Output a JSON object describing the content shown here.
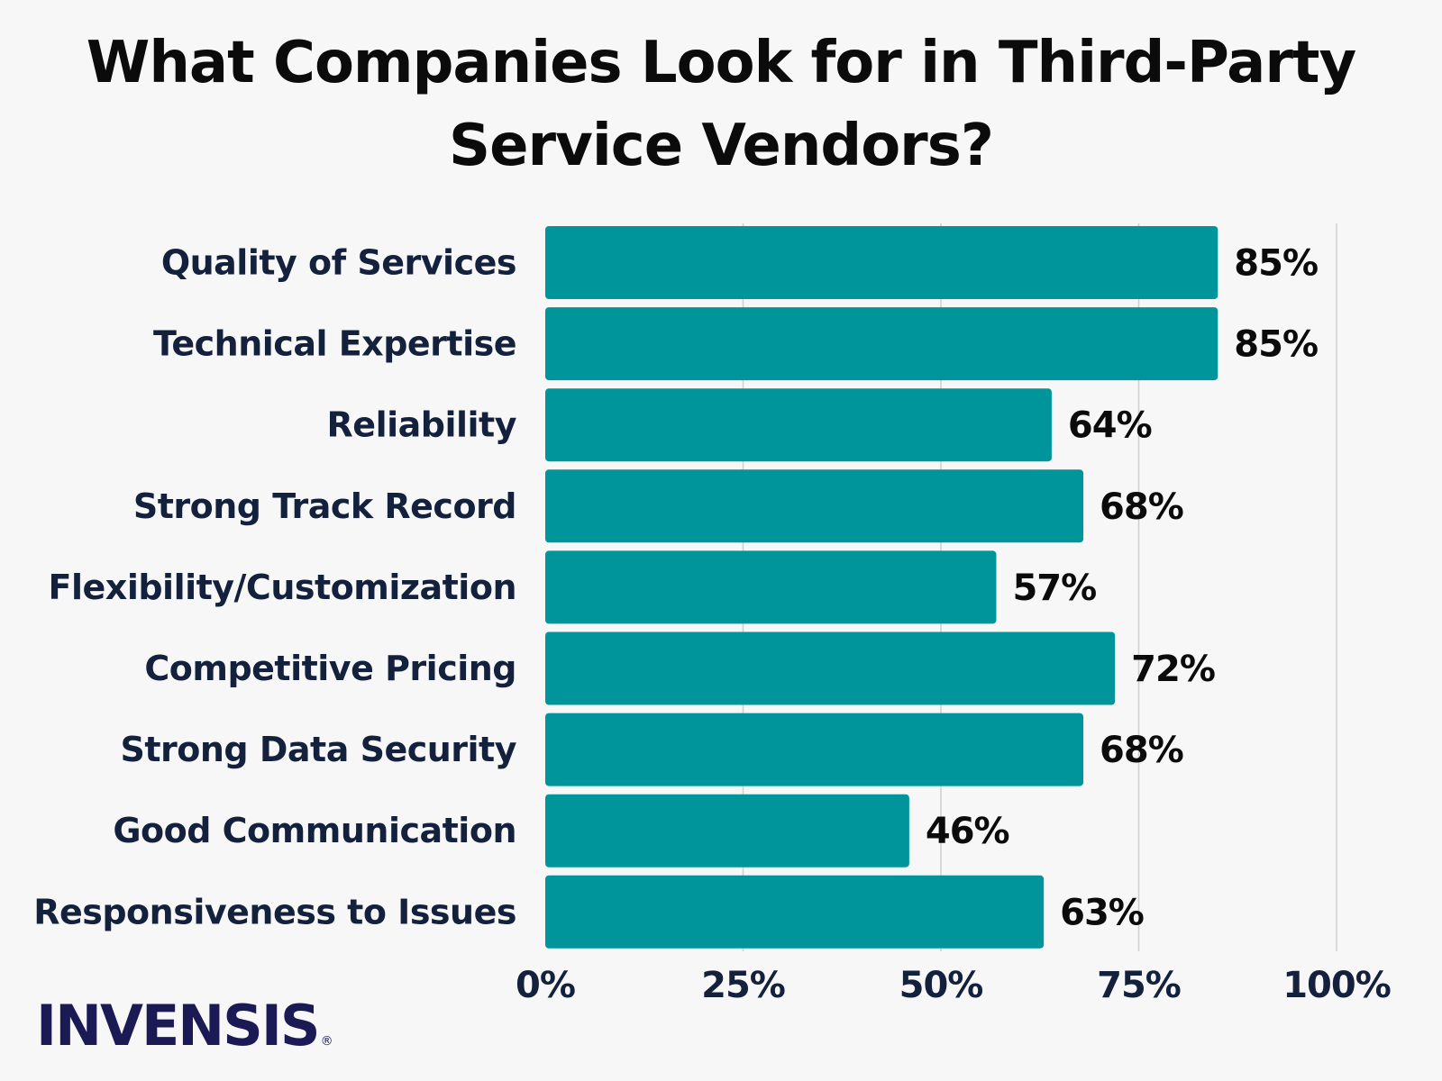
{
  "chart_data": {
    "type": "bar",
    "orientation": "horizontal",
    "title_lines": [
      "What Companies Look for in Third-Party",
      "Service Vendors?"
    ],
    "categories": [
      "Quality of Services",
      "Technical Expertise",
      "Reliability",
      "Strong Track Record",
      "Flexibility/Customization",
      "Competitive Pricing",
      "Strong Data Security",
      "Good Communication",
      "Responsiveness to Issues"
    ],
    "values": [
      85,
      85,
      64,
      68,
      57,
      72,
      68,
      46,
      63
    ],
    "value_labels": [
      "85%",
      "85%",
      "64%",
      "68%",
      "57%",
      "72%",
      "68%",
      "46%",
      "63%"
    ],
    "xlim": [
      0,
      100
    ],
    "x_ticks": [
      0,
      25,
      50,
      75,
      100
    ],
    "x_tick_labels": [
      "0%",
      "25%",
      "50%",
      "75%",
      "100%"
    ],
    "grid": "vertical",
    "bar_color": "#00959a",
    "grid_color": "#cfcfcf"
  },
  "brand": {
    "logo_text": "INVENSIS",
    "logo_mark": "®",
    "logo_color": "#1b1a55"
  }
}
